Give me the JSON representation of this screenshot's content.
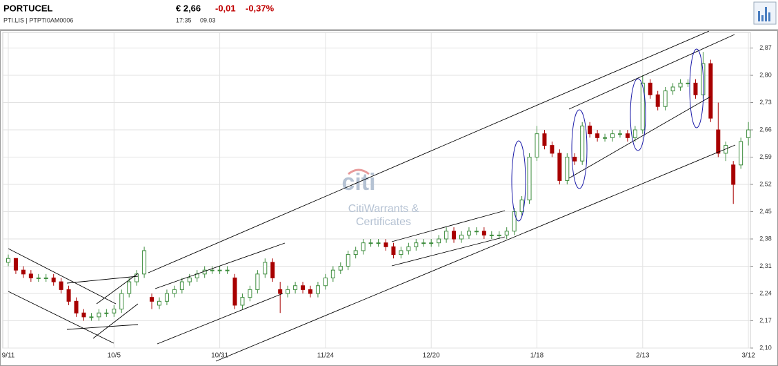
{
  "header": {
    "name": "PORTUCEL",
    "codes": "PTI.LIS  |  PTPTI0AM0006",
    "price": "€ 2,66",
    "change": "-0,01",
    "change_pct": "-0,37%",
    "time": "17:35",
    "date": "09.03"
  },
  "watermark": {
    "logo": "citi",
    "line1": "CitiWarrants &",
    "line2": "Certificates"
  },
  "chart_data": {
    "type": "candlestick",
    "up_color": "#3c8c3c",
    "down_color": "#a80000",
    "grid": true,
    "categories": [
      "9/11",
      null,
      null,
      null,
      null,
      null,
      null,
      null,
      null,
      null,
      null,
      null,
      null,
      null,
      "10/5",
      null,
      null,
      null,
      null,
      null,
      null,
      null,
      null,
      null,
      null,
      null,
      null,
      null,
      "10/31",
      null,
      null,
      null,
      null,
      null,
      null,
      null,
      null,
      null,
      null,
      null,
      null,
      null,
      "11/24",
      null,
      null,
      null,
      null,
      null,
      null,
      null,
      null,
      null,
      null,
      null,
      null,
      null,
      "12/20",
      null,
      null,
      null,
      null,
      null,
      null,
      null,
      null,
      null,
      null,
      null,
      null,
      null,
      "1/18",
      null,
      null,
      null,
      null,
      null,
      null,
      null,
      null,
      null,
      null,
      null,
      null,
      null,
      "2/13",
      null,
      null,
      null,
      null,
      null,
      null,
      null,
      null,
      null,
      null,
      null,
      null,
      null,
      "3/12"
    ],
    "open": [
      2.32,
      2.33,
      2.3,
      2.29,
      2.28,
      2.28,
      2.28,
      2.27,
      2.25,
      2.22,
      2.19,
      2.18,
      2.18,
      2.19,
      2.19,
      2.2,
      2.24,
      2.27,
      2.29,
      2.23,
      2.21,
      2.22,
      2.24,
      2.25,
      2.27,
      2.28,
      2.29,
      2.3,
      2.3,
      2.3,
      2.28,
      2.21,
      2.23,
      2.25,
      2.29,
      2.32,
      2.25,
      2.24,
      2.25,
      2.26,
      2.25,
      2.24,
      2.26,
      2.28,
      2.3,
      2.31,
      2.34,
      2.35,
      2.37,
      2.37,
      2.37,
      2.36,
      2.34,
      2.35,
      2.36,
      2.37,
      2.37,
      2.37,
      2.38,
      2.4,
      2.38,
      2.39,
      2.4,
      2.4,
      2.39,
      2.39,
      2.39,
      2.4,
      2.45,
      2.48,
      2.59,
      2.65,
      2.62,
      2.6,
      2.53,
      2.59,
      2.58,
      2.67,
      2.65,
      2.64,
      2.64,
      2.65,
      2.65,
      2.64,
      2.66,
      2.78,
      2.75,
      2.72,
      2.76,
      2.77,
      2.78,
      2.78,
      2.75,
      2.83,
      2.66,
      2.6,
      2.57,
      2.57,
      2.64
    ],
    "high": [
      2.34,
      2.33,
      2.31,
      2.3,
      2.29,
      2.29,
      2.29,
      2.28,
      2.26,
      2.23,
      2.2,
      2.19,
      2.2,
      2.2,
      2.21,
      2.25,
      2.28,
      2.3,
      2.36,
      2.24,
      2.23,
      2.25,
      2.26,
      2.28,
      2.29,
      2.3,
      2.31,
      2.31,
      2.31,
      2.31,
      2.29,
      2.24,
      2.26,
      2.3,
      2.33,
      2.33,
      2.27,
      2.26,
      2.27,
      2.27,
      2.26,
      2.27,
      2.29,
      2.31,
      2.32,
      2.35,
      2.36,
      2.38,
      2.38,
      2.38,
      2.38,
      2.37,
      2.36,
      2.37,
      2.38,
      2.38,
      2.38,
      2.39,
      2.41,
      2.41,
      2.4,
      2.41,
      2.41,
      2.41,
      2.4,
      2.4,
      2.41,
      2.46,
      2.49,
      2.6,
      2.67,
      2.66,
      2.63,
      2.61,
      2.6,
      2.6,
      2.68,
      2.68,
      2.66,
      2.65,
      2.66,
      2.66,
      2.66,
      2.67,
      2.8,
      2.79,
      2.76,
      2.77,
      2.78,
      2.79,
      2.79,
      2.79,
      2.86,
      2.84,
      2.73,
      2.63,
      2.58,
      2.64,
      2.68
    ],
    "low": [
      2.31,
      2.29,
      2.28,
      2.27,
      2.27,
      2.27,
      2.26,
      2.24,
      2.21,
      2.18,
      2.17,
      2.17,
      2.17,
      2.18,
      2.18,
      2.19,
      2.23,
      2.26,
      2.28,
      2.2,
      2.2,
      2.21,
      2.23,
      2.24,
      2.26,
      2.27,
      2.28,
      2.29,
      2.29,
      2.29,
      2.2,
      2.2,
      2.22,
      2.24,
      2.28,
      2.27,
      2.19,
      2.23,
      2.24,
      2.24,
      2.23,
      2.23,
      2.25,
      2.27,
      2.29,
      2.3,
      2.33,
      2.34,
      2.36,
      2.36,
      2.35,
      2.33,
      2.33,
      2.34,
      2.35,
      2.36,
      2.36,
      2.36,
      2.37,
      2.37,
      2.37,
      2.38,
      2.39,
      2.38,
      2.38,
      2.38,
      2.38,
      2.39,
      2.44,
      2.47,
      2.58,
      2.61,
      2.59,
      2.52,
      2.52,
      2.57,
      2.57,
      2.64,
      2.63,
      2.63,
      2.63,
      2.64,
      2.63,
      2.63,
      2.65,
      2.74,
      2.71,
      2.71,
      2.75,
      2.76,
      2.77,
      2.74,
      2.74,
      2.68,
      2.59,
      2.58,
      2.47,
      2.56,
      2.62
    ],
    "close": [
      2.33,
      2.3,
      2.29,
      2.28,
      2.28,
      2.28,
      2.27,
      2.25,
      2.22,
      2.19,
      2.18,
      2.18,
      2.19,
      2.19,
      2.2,
      2.24,
      2.27,
      2.29,
      2.35,
      2.22,
      2.22,
      2.24,
      2.25,
      2.27,
      2.28,
      2.29,
      2.3,
      2.3,
      2.3,
      2.3,
      2.21,
      2.23,
      2.25,
      2.29,
      2.32,
      2.28,
      2.24,
      2.25,
      2.26,
      2.25,
      2.24,
      2.26,
      2.28,
      2.3,
      2.31,
      2.34,
      2.35,
      2.37,
      2.37,
      2.37,
      2.36,
      2.34,
      2.35,
      2.36,
      2.37,
      2.37,
      2.37,
      2.38,
      2.4,
      2.38,
      2.39,
      2.4,
      2.4,
      2.39,
      2.39,
      2.39,
      2.4,
      2.45,
      2.48,
      2.59,
      2.65,
      2.62,
      2.6,
      2.53,
      2.59,
      2.58,
      2.67,
      2.65,
      2.64,
      2.64,
      2.65,
      2.65,
      2.64,
      2.66,
      2.78,
      2.75,
      2.72,
      2.76,
      2.77,
      2.78,
      2.78,
      2.75,
      2.83,
      2.69,
      2.6,
      2.62,
      2.52,
      2.63,
      2.66
    ],
    "ylim": [
      2.1,
      2.91
    ],
    "yticks": [
      {
        "value": 2.1,
        "label": "2,10"
      },
      {
        "value": 2.17,
        "label": "2,17"
      },
      {
        "value": 2.24,
        "label": "2,24"
      },
      {
        "value": 2.31,
        "label": "2,31"
      },
      {
        "value": 2.38,
        "label": "2,38"
      },
      {
        "value": 2.45,
        "label": "2,45"
      },
      {
        "value": 2.52,
        "label": "2,52"
      },
      {
        "value": 2.59,
        "label": "2,59"
      },
      {
        "value": 2.66,
        "label": "2,66"
      },
      {
        "value": 2.73,
        "label": "2,73"
      },
      {
        "value": 2.8,
        "label": "2,80"
      },
      {
        "value": 2.87,
        "label": "2,87"
      }
    ]
  }
}
